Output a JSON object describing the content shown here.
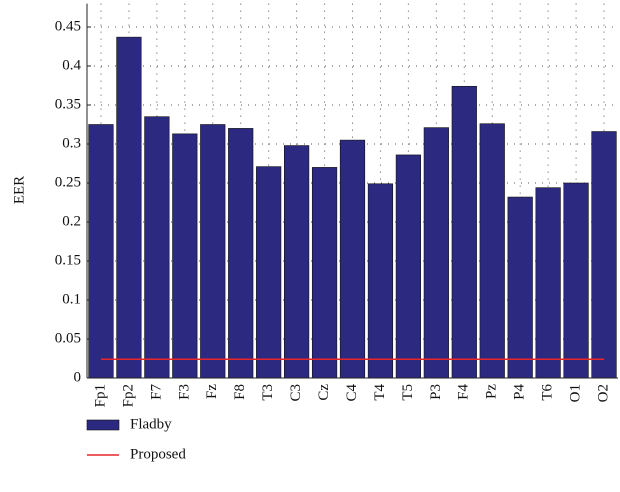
{
  "chart_data": {
    "type": "bar",
    "y_label": "EER",
    "categories": [
      "Fp1",
      "Fp2",
      "F7",
      "F3",
      "Fz",
      "F8",
      "T3",
      "C3",
      "Cz",
      "C4",
      "T4",
      "T5",
      "P3",
      "F4",
      "Pz",
      "P4",
      "T6",
      "O1",
      "O2"
    ],
    "series": [
      {
        "name": "Fladby",
        "type": "bar",
        "color": "#2b2a80",
        "values": [
          0.325,
          0.437,
          0.335,
          0.313,
          0.325,
          0.32,
          0.271,
          0.298,
          0.27,
          0.305,
          0.249,
          0.286,
          0.321,
          0.374,
          0.326,
          0.232,
          0.244,
          0.25,
          0.316
        ]
      },
      {
        "name": "Proposed",
        "type": "line",
        "color": "#e8262a",
        "values": [
          0.024,
          0.024,
          0.024,
          0.024,
          0.024,
          0.024,
          0.024,
          0.024,
          0.024,
          0.024,
          0.024,
          0.024,
          0.024,
          0.024,
          0.024,
          0.024,
          0.024,
          0.024,
          0.024
        ]
      }
    ],
    "ylim": [
      0,
      0.48
    ],
    "yticks": [
      0,
      0.05,
      0.1,
      0.15,
      0.2,
      0.25,
      0.3,
      0.35,
      0.4,
      0.45
    ],
    "grid": true,
    "legend": "bottom-left"
  }
}
